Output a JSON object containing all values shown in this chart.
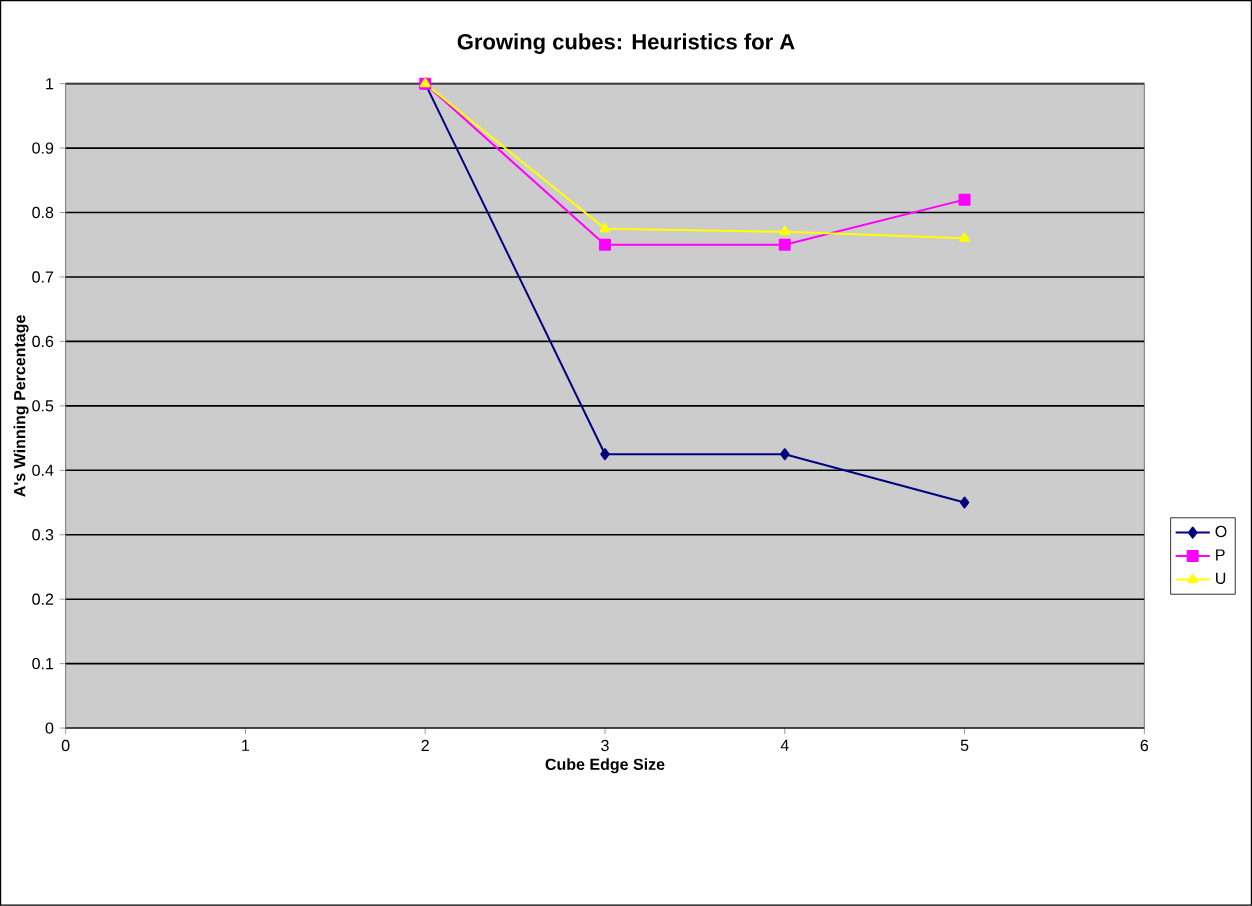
{
  "chart_data": {
    "type": "line",
    "title": "Growing cubes: Heuristics for A",
    "xlabel": "Cube Edge Size",
    "ylabel": "A's Winning Percentage",
    "x": [
      2,
      3,
      4,
      5
    ],
    "series": [
      {
        "name": "O",
        "color": "#000080",
        "marker": "diamond",
        "values": [
          1,
          0.425,
          0.425,
          0.35
        ]
      },
      {
        "name": "P",
        "color": "#ff00ff",
        "marker": "square",
        "values": [
          1,
          0.75,
          0.75,
          0.82
        ]
      },
      {
        "name": "U",
        "color": "#ffff00",
        "marker": "triangle",
        "values": [
          1,
          0.775,
          0.77,
          0.76
        ]
      }
    ],
    "xlim": [
      0,
      6
    ],
    "xticks": [
      0,
      1,
      2,
      3,
      4,
      5,
      6
    ],
    "ylim": [
      0,
      1
    ],
    "yticks": [
      0,
      0.1,
      0.2,
      0.3,
      0.4,
      0.5,
      0.6,
      0.7,
      0.8,
      0.9,
      1
    ],
    "grid": "y",
    "legend": "right",
    "line_style": "solid"
  }
}
